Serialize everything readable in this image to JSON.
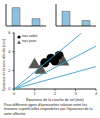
{
  "chart_data": [
    {
      "type": "bar",
      "categories": [
        null,
        null
      ],
      "values": [
        5,
        2
      ],
      "color": "#8fc1dc",
      "ylim": [
        0,
        6
      ],
      "tick_labels": false
    },
    {
      "type": "bar",
      "categories": [
        null,
        null
      ],
      "values": [
        4,
        1.5
      ],
      "color": "#8fc1dc",
      "ylim": [
        0,
        6
      ],
      "tick_labels": false
    },
    {
      "type": "scatter",
      "x_label": "Épaisseur de la couche de sel (mm)",
      "y_label": "Épaisseur de la zone affectée (mm)",
      "xlim": [
        0,
        4
      ],
      "xticks": [
        0,
        1,
        2,
        3,
        4
      ],
      "ylim": [
        0,
        6
      ],
      "yticks": [
        0,
        2,
        4,
        6
      ],
      "legend": "upper left",
      "series": [
        {
          "name": "eau salée",
          "color": "#000000",
          "marker": "circle",
          "x": [
            1.5,
            1.8,
            2.0,
            2.2
          ],
          "values": [
            2.8,
            3.3,
            3.0,
            3.6
          ]
        },
        {
          "name": "eau pure",
          "color": "#555555",
          "marker": "triangle",
          "x": [
            1.0,
            1.3,
            2.4
          ],
          "values": [
            2.6,
            2.0,
            2.9
          ]
        },
        {
          "type": "line",
          "color": "#3aa0c8",
          "x": [
            0,
            3.3
          ],
          "values": [
            0,
            6
          ]
        },
        {
          "type": "line",
          "color": "#3aa0c8",
          "x": [
            0,
            4
          ],
          "values": [
            0,
            4.6
          ]
        },
        {
          "type": "line",
          "color": "#3aa0c8",
          "x": [
            0,
            4
          ],
          "values": [
            0,
            2.4
          ]
        }
      ]
    }
  ],
  "caption": "Pour différents types d'éprouvettes relation entre les érosions superficielles engendrées par l'épaisseur de la zone affectée"
}
